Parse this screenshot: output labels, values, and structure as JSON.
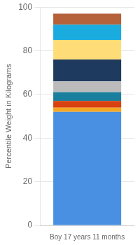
{
  "chart_data": {
    "type": "bar",
    "stacked": true,
    "categories": [
      "Boy 17 years 11 months"
    ],
    "series": [
      {
        "color": "#4A90E2",
        "values": [
          52
        ]
      },
      {
        "color": "#F5A623",
        "values": [
          2
        ]
      },
      {
        "color": "#D94010",
        "values": [
          3
        ]
      },
      {
        "color": "#1A7F9C",
        "values": [
          4
        ]
      },
      {
        "color": "#BBBBBB",
        "values": [
          5
        ]
      },
      {
        "color": "#1E3A5F",
        "values": [
          10
        ]
      },
      {
        "color": "#FEDD78",
        "values": [
          9
        ]
      },
      {
        "color": "#1AABDF",
        "values": [
          7
        ]
      },
      {
        "color": "#B5613A",
        "values": [
          5
        ]
      }
    ],
    "ylabel": "Percentile Weight in Kilograms",
    "ylim": [
      0,
      100
    ],
    "yticks": [
      0,
      20,
      40,
      60,
      80,
      100
    ],
    "grid": true
  }
}
